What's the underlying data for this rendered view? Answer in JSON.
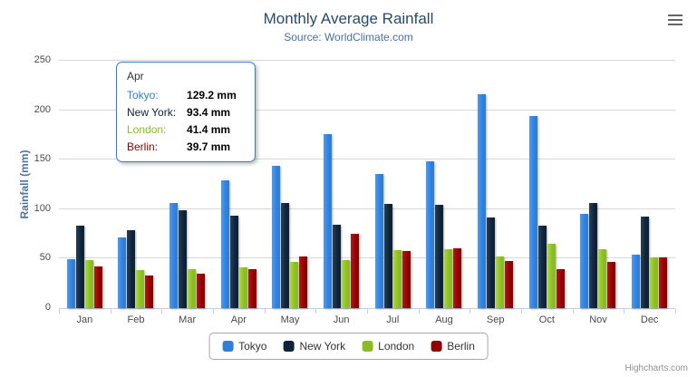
{
  "chart_data": {
    "type": "bar",
    "title": "Monthly Average Rainfall",
    "subtitle": "Source: WorldClimate.com",
    "xlabel": "",
    "ylabel": "Rainfall (mm)",
    "ylim": [
      0,
      250
    ],
    "yticks": [
      0,
      50,
      100,
      150,
      200,
      250
    ],
    "grid": true,
    "legend_position": "bottom",
    "categories": [
      "Jan",
      "Feb",
      "Mar",
      "Apr",
      "May",
      "Jun",
      "Jul",
      "Aug",
      "Sep",
      "Oct",
      "Nov",
      "Dec"
    ],
    "series": [
      {
        "name": "Tokyo",
        "color": "#2f7ed8",
        "values": [
          49.9,
          71.5,
          106.4,
          129.2,
          144.0,
          176.0,
          135.6,
          148.5,
          216.4,
          194.1,
          95.6,
          54.4
        ]
      },
      {
        "name": "New York",
        "color": "#0d233a",
        "values": [
          83.6,
          78.8,
          98.5,
          93.4,
          106.0,
          84.5,
          105.0,
          104.3,
          91.2,
          83.5,
          106.6,
          92.3
        ]
      },
      {
        "name": "London",
        "color": "#8bbc21",
        "values": [
          48.9,
          38.8,
          39.3,
          41.4,
          47.0,
          48.3,
          59.0,
          59.6,
          52.4,
          65.2,
          59.3,
          51.2
        ]
      },
      {
        "name": "Berlin",
        "color": "#910000",
        "values": [
          42.4,
          33.2,
          34.5,
          39.7,
          52.6,
          75.5,
          57.4,
          60.4,
          47.6,
          39.1,
          46.8,
          51.1
        ]
      }
    ]
  },
  "tooltip": {
    "header": "Apr",
    "rows": [
      {
        "label": "Tokyo:",
        "value": "129.2 mm",
        "color": "#2f7ed8"
      },
      {
        "label": "New York:",
        "value": "93.4 mm",
        "color": "#0d233a"
      },
      {
        "label": "London:",
        "value": "41.4 mm",
        "color": "#8bbc21"
      },
      {
        "label": "Berlin:",
        "value": "39.7 mm",
        "color": "#910000"
      }
    ]
  },
  "icons": {
    "context_menu": "hamburger-icon"
  },
  "credit": "Highcharts.com"
}
